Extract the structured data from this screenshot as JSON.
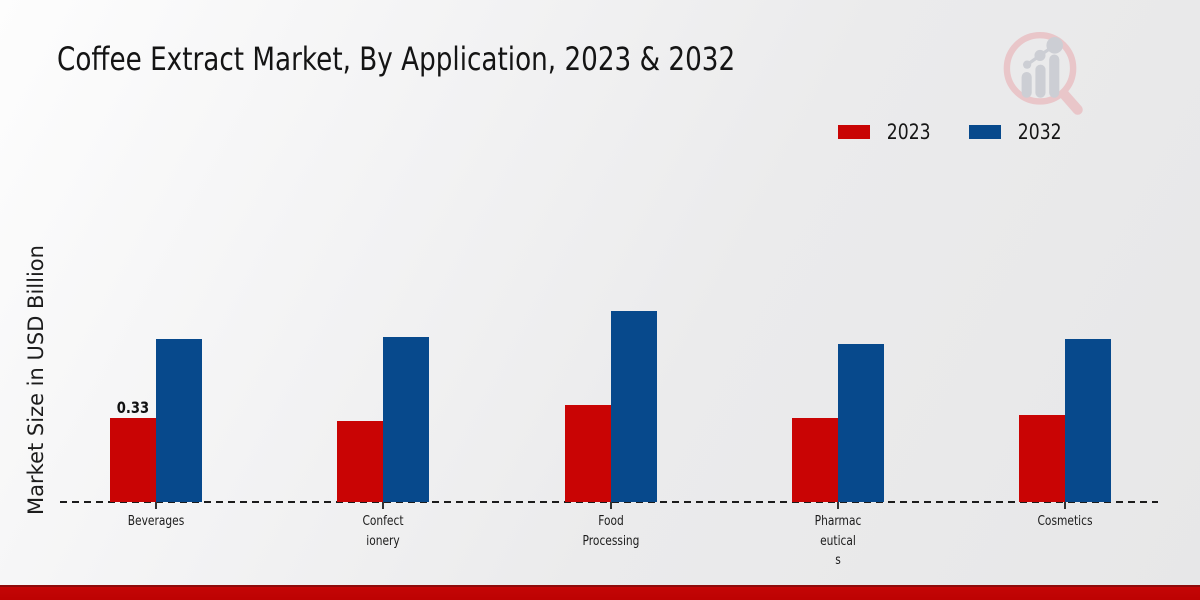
{
  "chart_data": {
    "type": "bar",
    "title": "Coffee Extract Market, By Application, 2023 & 2032",
    "xlabel": "",
    "ylabel": "Market Size in USD Billion",
    "categories": [
      "Beverages",
      "Confectionery",
      "Food Processing",
      "Pharmaceuticals",
      "Cosmetics"
    ],
    "category_label_lines": [
      [
        "Beverages"
      ],
      [
        "Confect",
        "ionery"
      ],
      [
        "Food",
        "Processing"
      ],
      [
        "Pharmac",
        "eutical",
        "s"
      ],
      [
        "Cosmetics"
      ]
    ],
    "series": [
      {
        "name": "2023",
        "color": "#c90404",
        "values": [
          0.33,
          0.32,
          0.38,
          0.33,
          0.34
        ]
      },
      {
        "name": "2032",
        "color": "#07498c",
        "values": [
          0.64,
          0.65,
          0.75,
          0.62,
          0.64
        ]
      }
    ],
    "annotations": [
      {
        "text": "0.33",
        "series_index": 0,
        "category_index": 0
      }
    ],
    "ylim": [
      0,
      0.8
    ],
    "grid": false,
    "legend_position": "top-right",
    "baseline_style": "dashed"
  },
  "footer": {
    "accent_color": "#c40505"
  },
  "logo": {
    "description": "magnifier-bar-chart-watermark"
  }
}
